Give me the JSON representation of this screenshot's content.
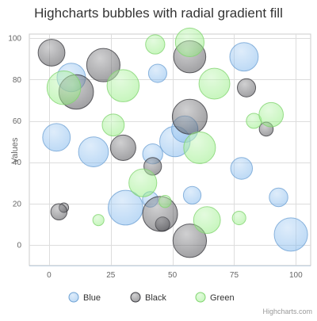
{
  "chart_data": {
    "type": "bubble",
    "title": "Highcharts bubbles with radial gradient fill",
    "ylabel": "Values",
    "xlim": [
      -8,
      106
    ],
    "ylim": [
      -10,
      102
    ],
    "x_ticks": [
      0,
      25,
      50,
      75,
      100
    ],
    "y_ticks": [
      0,
      20,
      40,
      60,
      80,
      100
    ],
    "grid": true,
    "legend_position": "bottom",
    "credits": "Highcharts.com",
    "series": [
      {
        "name": "Blue",
        "color": "#7cb5ec",
        "points": [
          {
            "x": 9,
            "y": 81,
            "z": 63
          },
          {
            "x": 98,
            "y": 5,
            "z": 89
          },
          {
            "x": 51,
            "y": 50,
            "z": 73
          },
          {
            "x": 41,
            "y": 22,
            "z": 14
          },
          {
            "x": 58,
            "y": 24,
            "z": 20
          },
          {
            "x": 78,
            "y": 37,
            "z": 34
          },
          {
            "x": 55,
            "y": 56,
            "z": 53
          },
          {
            "x": 18,
            "y": 45,
            "z": 70
          },
          {
            "x": 42,
            "y": 44,
            "z": 28
          },
          {
            "x": 3,
            "y": 52,
            "z": 59
          },
          {
            "x": 31,
            "y": 18,
            "z": 97
          },
          {
            "x": 79,
            "y": 91,
            "z": 63
          },
          {
            "x": 93,
            "y": 23,
            "z": 23
          },
          {
            "x": 44,
            "y": 83,
            "z": 22
          }
        ]
      },
      {
        "name": "Black",
        "color": "#434348",
        "points": [
          {
            "x": 42,
            "y": 38,
            "z": 20
          },
          {
            "x": 6,
            "y": 18,
            "z": 1
          },
          {
            "x": 1,
            "y": 93,
            "z": 55
          },
          {
            "x": 57,
            "y": 2,
            "z": 90
          },
          {
            "x": 80,
            "y": 76,
            "z": 22
          },
          {
            "x": 11,
            "y": 74,
            "z": 96
          },
          {
            "x": 88,
            "y": 56,
            "z": 10
          },
          {
            "x": 30,
            "y": 47,
            "z": 49
          },
          {
            "x": 57,
            "y": 62,
            "z": 98
          },
          {
            "x": 4,
            "y": 16,
            "z": 16
          },
          {
            "x": 46,
            "y": 10,
            "z": 11
          },
          {
            "x": 22,
            "y": 87,
            "z": 89
          },
          {
            "x": 57,
            "y": 91,
            "z": 82
          },
          {
            "x": 45,
            "y": 15,
            "z": 98
          }
        ]
      },
      {
        "name": "Green",
        "color": "#90ed7d",
        "points": [
          {
            "x": 47,
            "y": 21,
            "z": 6
          },
          {
            "x": 20,
            "y": 12,
            "z": 4
          },
          {
            "x": 6,
            "y": 76,
            "z": 91
          },
          {
            "x": 38,
            "y": 30,
            "z": 60
          },
          {
            "x": 57,
            "y": 98,
            "z": 64
          },
          {
            "x": 61,
            "y": 47,
            "z": 80
          },
          {
            "x": 83,
            "y": 60,
            "z": 13
          },
          {
            "x": 67,
            "y": 78,
            "z": 75
          },
          {
            "x": 64,
            "y": 12,
            "z": 55
          },
          {
            "x": 30,
            "y": 77,
            "z": 82
          },
          {
            "x": 90,
            "y": 63,
            "z": 44
          },
          {
            "x": 77,
            "y": 13,
            "z": 9
          },
          {
            "x": 43,
            "y": 97,
            "z": 25
          },
          {
            "x": 26,
            "y": 58,
            "z": 35
          }
        ]
      }
    ]
  }
}
